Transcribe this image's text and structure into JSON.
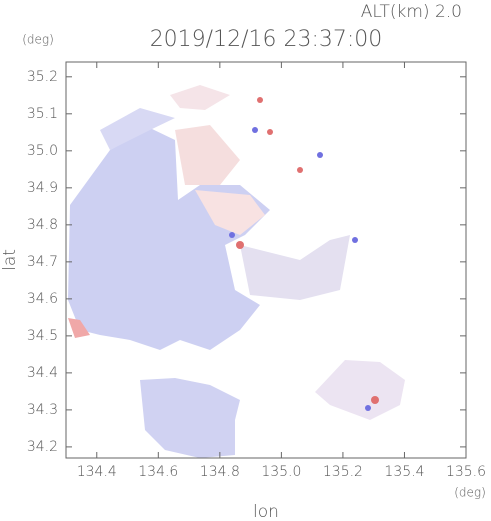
{
  "chart_data": {
    "type": "image",
    "title": "2019/12/16 23:37:00",
    "annotation": "ALT(km)  2.0",
    "xlabel": "lon",
    "ylabel": "lat",
    "xunit": "(deg)",
    "yunit": "(deg)",
    "xlim": [
      134.3,
      135.6
    ],
    "ylim": [
      34.17,
      35.24
    ],
    "xticks": [
      134.4,
      134.6,
      134.8,
      135.0,
      135.2,
      135.4,
      135.6
    ],
    "yticks": [
      34.2,
      34.3,
      34.4,
      34.5,
      34.6,
      34.7,
      34.8,
      34.9,
      35.0,
      35.1,
      35.2
    ]
  }
}
